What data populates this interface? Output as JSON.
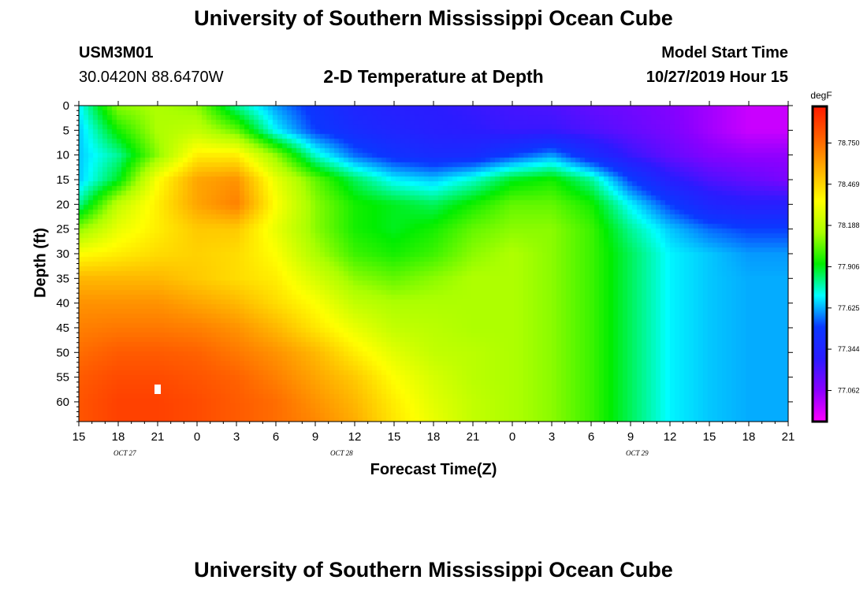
{
  "header": {
    "title_top": "University of Southern Mississippi Ocean Cube",
    "station_id": "USM3M01",
    "coordinates": "30.0420N 88.6470W",
    "center_title": "2-D Temperature at Depth",
    "model_start_label": "Model Start Time",
    "model_start_value": "10/27/2019 Hour 15",
    "title_bottom": "University of Southern Mississippi Ocean Cube"
  },
  "chart_data": {
    "type": "heatmap",
    "title": "2-D Temperature at Depth",
    "xlabel": "Forecast Time(Z)",
    "ylabel": "Depth (ft)",
    "x_tick_labels": [
      "15",
      "18",
      "21",
      "0",
      "3",
      "6",
      "9",
      "12",
      "15",
      "18",
      "21",
      "0",
      "3",
      "6",
      "9",
      "12",
      "15",
      "18",
      "21"
    ],
    "x_hours_from_start": [
      0,
      3,
      6,
      9,
      12,
      15,
      18,
      21,
      24,
      27,
      30,
      33,
      36,
      39,
      42,
      45,
      48,
      51,
      54
    ],
    "x_date_labels": [
      {
        "label": "OCT 27",
        "at_hour": 3.5
      },
      {
        "label": "OCT 28",
        "at_hour": 20
      },
      {
        "label": "OCT 29",
        "at_hour": 42.5
      }
    ],
    "xlim_hours": [
      0,
      54
    ],
    "y_ticks": [
      0,
      5,
      10,
      15,
      20,
      25,
      30,
      35,
      40,
      45,
      50,
      55,
      60
    ],
    "ylim": [
      0,
      64
    ],
    "y_inverted": true,
    "colorbar": {
      "unit": "degF",
      "ticks": [
        "78.750",
        "78.469",
        "78.188",
        "77.906",
        "77.625",
        "77.344",
        "77.062"
      ],
      "range": [
        76.85,
        79.0
      ],
      "colors": [
        "#ff00ff",
        "#8a00ff",
        "#2a1cff",
        "#0a38ff",
        "#00ffff",
        "#00ee00",
        "#aaff00",
        "#ffff00",
        "#ffb000",
        "#ff6000",
        "#ff1a00"
      ]
    },
    "series": [
      {
        "depth_ft": 0,
        "values": [
          77.7,
          78.1,
          78.15,
          78.1,
          77.8,
          77.6,
          77.45,
          77.35,
          77.3,
          77.28,
          77.25,
          77.22,
          77.2,
          77.15,
          77.12,
          77.08,
          77.02,
          76.95,
          76.95
        ]
      },
      {
        "depth_ft": 5,
        "values": [
          77.65,
          77.95,
          78.15,
          78.2,
          78.05,
          77.7,
          77.5,
          77.4,
          77.35,
          77.3,
          77.28,
          77.25,
          77.25,
          77.2,
          77.15,
          77.1,
          77.02,
          76.95,
          76.95
        ]
      },
      {
        "depth_ft": 10,
        "values": [
          77.65,
          77.8,
          78.1,
          78.4,
          78.4,
          78.1,
          77.75,
          77.55,
          77.45,
          77.4,
          77.4,
          77.5,
          77.6,
          77.4,
          77.25,
          77.15,
          77.08,
          77.05,
          77.05
        ]
      },
      {
        "depth_ft": 15,
        "values": [
          77.65,
          77.9,
          78.35,
          78.6,
          78.65,
          78.3,
          78.05,
          77.85,
          77.7,
          77.65,
          77.75,
          77.9,
          77.95,
          77.8,
          77.5,
          77.3,
          77.2,
          77.15,
          77.1
        ]
      },
      {
        "depth_ft": 20,
        "values": [
          77.8,
          78.2,
          78.4,
          78.6,
          78.7,
          78.35,
          78.1,
          77.95,
          77.9,
          77.85,
          77.95,
          78.05,
          78.05,
          77.95,
          77.7,
          77.5,
          77.35,
          77.3,
          77.3
        ]
      },
      {
        "depth_ft": 25,
        "values": [
          78.1,
          78.3,
          78.4,
          78.5,
          78.5,
          78.3,
          78.1,
          77.95,
          77.9,
          77.95,
          78.05,
          78.1,
          78.1,
          78.0,
          77.8,
          77.65,
          77.55,
          77.5,
          77.5
        ]
      },
      {
        "depth_ft": 30,
        "values": [
          78.35,
          78.4,
          78.45,
          78.48,
          78.45,
          78.35,
          78.15,
          78.0,
          77.95,
          78.0,
          78.1,
          78.15,
          78.1,
          78.0,
          77.85,
          77.7,
          77.65,
          77.6,
          77.6
        ]
      },
      {
        "depth_ft": 35,
        "values": [
          78.55,
          78.55,
          78.55,
          78.5,
          78.45,
          78.4,
          78.25,
          78.1,
          78.05,
          78.1,
          78.15,
          78.15,
          78.1,
          78.0,
          77.85,
          77.7,
          77.65,
          77.62,
          77.62
        ]
      },
      {
        "depth_ft": 40,
        "values": [
          78.65,
          78.65,
          78.65,
          78.6,
          78.55,
          78.45,
          78.35,
          78.2,
          78.15,
          78.15,
          78.15,
          78.15,
          78.1,
          78.0,
          77.85,
          77.7,
          77.65,
          77.62,
          77.62
        ]
      },
      {
        "depth_ft": 45,
        "values": [
          78.7,
          78.72,
          78.72,
          78.7,
          78.65,
          78.55,
          78.42,
          78.3,
          78.2,
          78.18,
          78.15,
          78.15,
          78.1,
          78.0,
          77.85,
          77.7,
          77.65,
          77.62,
          77.62
        ]
      },
      {
        "depth_ft": 50,
        "values": [
          78.75,
          78.8,
          78.8,
          78.78,
          78.72,
          78.65,
          78.55,
          78.4,
          78.28,
          78.2,
          78.18,
          78.15,
          78.1,
          78.0,
          77.85,
          77.7,
          77.65,
          77.62,
          77.62
        ]
      },
      {
        "depth_ft": 55,
        "values": [
          78.8,
          78.85,
          78.85,
          78.82,
          78.78,
          78.7,
          78.6,
          78.5,
          78.35,
          78.25,
          78.18,
          78.15,
          78.1,
          78.0,
          77.85,
          77.7,
          77.65,
          77.62,
          77.62
        ]
      },
      {
        "depth_ft": 60,
        "values": [
          78.82,
          78.88,
          78.88,
          78.85,
          78.8,
          78.75,
          78.65,
          78.55,
          78.4,
          78.28,
          78.2,
          78.15,
          78.1,
          78.0,
          77.85,
          77.7,
          77.65,
          77.62,
          77.62
        ]
      },
      {
        "depth_ft": 64,
        "values": [
          78.82,
          78.88,
          78.88,
          78.85,
          78.8,
          78.75,
          78.68,
          78.58,
          78.42,
          78.3,
          78.2,
          78.15,
          78.1,
          78.0,
          77.85,
          77.7,
          77.65,
          77.62,
          77.62
        ]
      }
    ]
  }
}
